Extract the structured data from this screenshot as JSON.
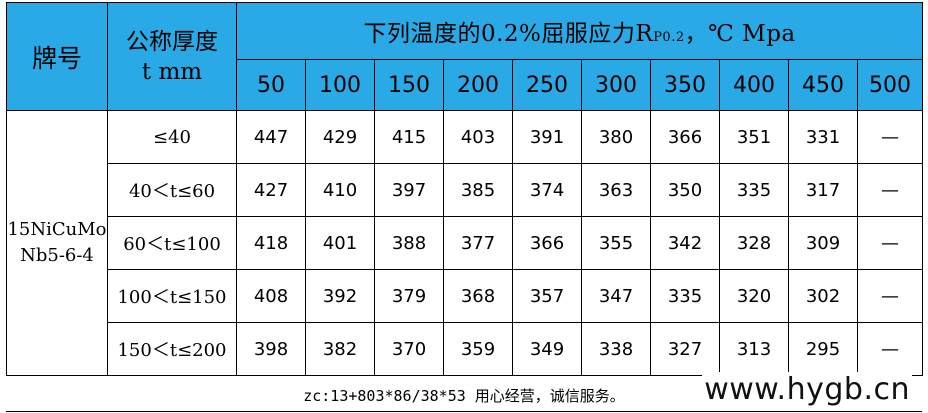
{
  "header": {
    "brand_label": "牌号",
    "thickness_label_line1": "公称厚度",
    "thickness_label_line2": "t mm",
    "temp_title_main": "下列温度的0.2%屈服应力R",
    "temp_title_sub": "P0.2",
    "temp_title_unit": "，℃ Mpa",
    "temperatures": [
      "50",
      "100",
      "150",
      "200",
      "250",
      "300",
      "350",
      "400",
      "450",
      "500"
    ]
  },
  "grade": {
    "line1": "15NiCuMo",
    "line2": "Nb5-6-4"
  },
  "rows": [
    {
      "range": "≤40",
      "values": [
        "447",
        "429",
        "415",
        "403",
        "391",
        "380",
        "366",
        "351",
        "331",
        "—"
      ]
    },
    {
      "range": "40＜t≤60",
      "values": [
        "427",
        "410",
        "397",
        "385",
        "374",
        "363",
        "350",
        "335",
        "317",
        "—"
      ]
    },
    {
      "range": "60＜t≤100",
      "values": [
        "418",
        "401",
        "388",
        "377",
        "366",
        "355",
        "342",
        "328",
        "309",
        "—"
      ]
    },
    {
      "range": "100＜t≤150",
      "values": [
        "408",
        "392",
        "379",
        "368",
        "357",
        "347",
        "335",
        "320",
        "302",
        "—"
      ]
    },
    {
      "range": "150＜t≤200",
      "values": [
        "398",
        "382",
        "370",
        "359",
        "349",
        "338",
        "327",
        "313",
        "295",
        "—"
      ]
    }
  ],
  "footer": {
    "note": "zc:13+803*86/38*53 用心经营，诚信服务。",
    "watermark": "www.hygb.cn"
  }
}
